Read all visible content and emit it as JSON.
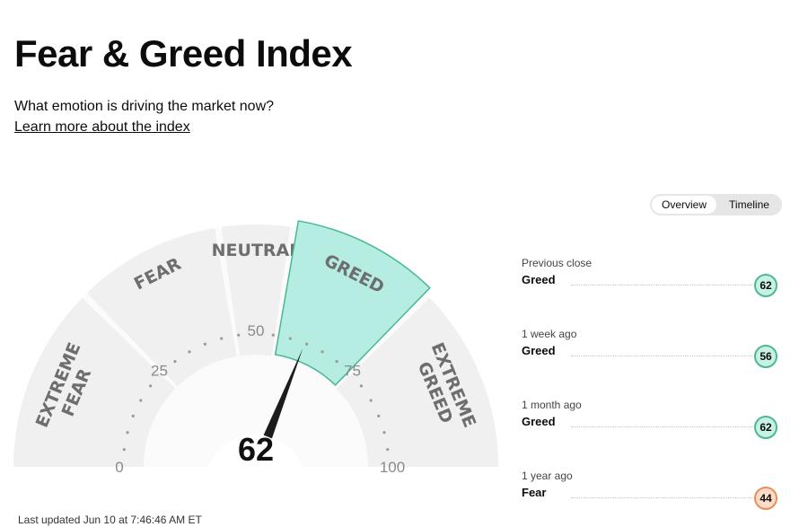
{
  "header": {
    "title": "Fear & Greed Index",
    "subtitle": "What emotion is driving the market now?",
    "learn_more": "Learn more about the index"
  },
  "view_toggle": {
    "options": [
      "Overview",
      "Timeline"
    ],
    "selected": "Overview"
  },
  "gauge": {
    "value": 62,
    "value_label": "62",
    "min": 0,
    "max": 100,
    "segments": [
      {
        "label": [
          "EXTREME",
          "FEAR"
        ],
        "from": 0,
        "to": 25,
        "active": false
      },
      {
        "label": [
          "FEAR"
        ],
        "from": 25,
        "to": 45,
        "active": false
      },
      {
        "label": [
          "NEUTRAL"
        ],
        "from": 45,
        "to": 55,
        "active": false
      },
      {
        "label": [
          "GREED"
        ],
        "from": 55,
        "to": 75,
        "active": true
      },
      {
        "label": [
          "EXTREME",
          "GREED"
        ],
        "from": 75,
        "to": 100,
        "active": false
      }
    ],
    "ticks": [
      "0",
      "25",
      "50",
      "75",
      "100"
    ],
    "colors": {
      "segment": "#f0f0f0",
      "active_fill": "#b5ede3",
      "active_stroke": "#49b893",
      "label": "#6e6e6e",
      "needle": "#1c1c1c",
      "tick_text": "#8a8a8a"
    }
  },
  "history": [
    {
      "label": "Previous close",
      "rating": "Greed",
      "value": "62",
      "badge_bg": "#c6f1e3",
      "badge_border": "#4fb891"
    },
    {
      "label": "1 week ago",
      "rating": "Greed",
      "value": "56",
      "badge_bg": "#c6f1e3",
      "badge_border": "#4fb891"
    },
    {
      "label": "1 month ago",
      "rating": "Greed",
      "value": "62",
      "badge_bg": "#c6f1e3",
      "badge_border": "#4fb891"
    },
    {
      "label": "1 year ago",
      "rating": "Fear",
      "value": "44",
      "badge_bg": "#fcdcc8",
      "badge_border": "#e98e5a"
    }
  ],
  "footer": {
    "last_updated": "Last updated Jun 10 at 7:46:46 AM ET"
  }
}
